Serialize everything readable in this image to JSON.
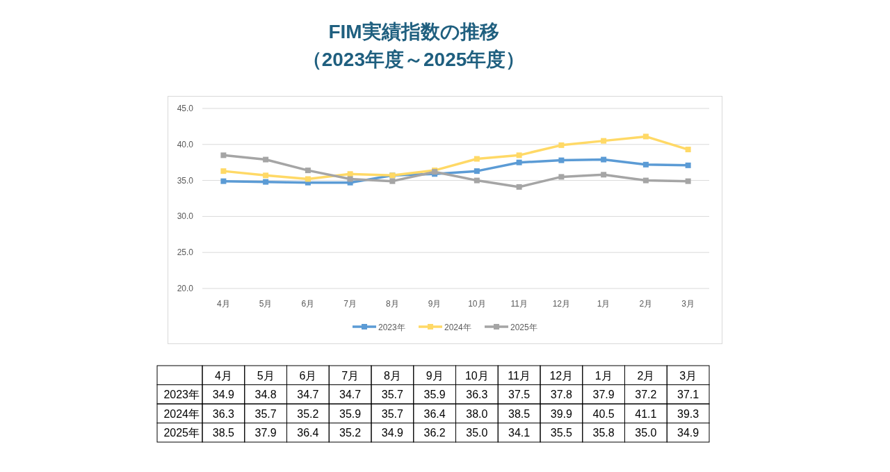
{
  "chart_data": {
    "type": "line",
    "title": "FIM実績指数の推移",
    "subtitle": "（2023年度～2025年度）",
    "categories": [
      "4月",
      "5月",
      "6月",
      "7月",
      "8月",
      "9月",
      "10月",
      "11月",
      "12月",
      "1月",
      "2月",
      "3月"
    ],
    "series": [
      {
        "name": "2023年",
        "color": "#5b9bd5",
        "values": [
          34.9,
          34.8,
          34.7,
          34.7,
          35.7,
          35.9,
          36.3,
          37.5,
          37.8,
          37.9,
          37.2,
          37.1
        ],
        "value_labels": [
          "34.9",
          "34.8",
          "34.7",
          "34.7",
          "35.7",
          "35.9",
          "36.3",
          "37.5",
          "37.8",
          "37.9",
          "37.2",
          "37.1"
        ]
      },
      {
        "name": "2024年",
        "color": "#ffd966",
        "values": [
          36.3,
          35.7,
          35.2,
          35.9,
          35.7,
          36.4,
          38.0,
          38.5,
          39.9,
          40.5,
          41.1,
          39.3
        ],
        "value_labels": [
          "36.3",
          "35.7",
          "35.2",
          "35.9",
          "35.7",
          "36.4",
          "38.0",
          "38.5",
          "39.9",
          "40.5",
          "41.1",
          "39.3"
        ]
      },
      {
        "name": "2025年",
        "color": "#a5a5a5",
        "values": [
          38.5,
          37.9,
          36.4,
          35.2,
          34.9,
          36.2,
          35.0,
          34.1,
          35.5,
          35.8,
          35.0,
          34.9
        ],
        "value_labels": [
          "38.5",
          "37.9",
          "36.4",
          "35.2",
          "34.9",
          "36.2",
          "35.0",
          "34.1",
          "35.5",
          "35.8",
          "35.0",
          "34.9"
        ]
      }
    ],
    "ylim": [
      20,
      45
    ],
    "yticks": [
      {
        "value": 20,
        "label": "20.0"
      },
      {
        "value": 25,
        "label": "25.0"
      },
      {
        "value": 30,
        "label": "30.0"
      },
      {
        "value": 35,
        "label": "35.0"
      },
      {
        "value": 40,
        "label": "40.0"
      },
      {
        "value": 45,
        "label": "45.0"
      }
    ],
    "grid": "y",
    "legend": "bottom",
    "marker": "square",
    "line_style": "solid"
  }
}
